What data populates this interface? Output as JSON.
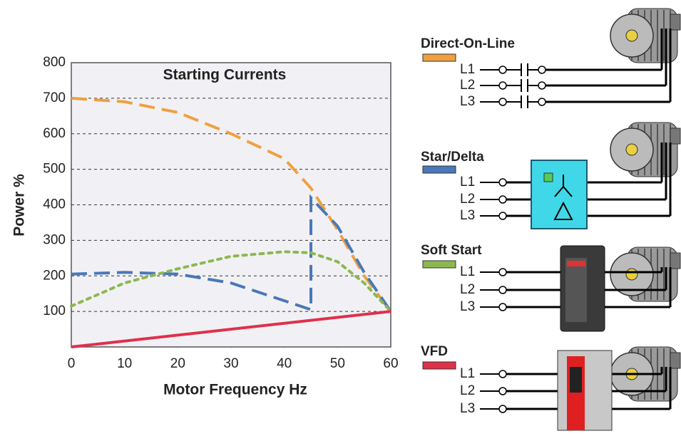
{
  "chart_data": {
    "type": "line",
    "title": "Starting Currents",
    "x_label": "Motor Frequency Hz",
    "y_label": "Power %",
    "xlim": [
      0,
      60
    ],
    "xticks": [
      0,
      10,
      20,
      30,
      40,
      50,
      60
    ],
    "ylim": [
      0,
      800
    ],
    "yticks": [
      100,
      200,
      300,
      400,
      500,
      600,
      700,
      800
    ],
    "grid": true,
    "series": [
      {
        "name": "Direct-On-Line",
        "color": "#f0a040",
        "style": "dashed",
        "x": [
          0,
          10,
          20,
          30,
          40,
          45,
          50,
          55,
          60
        ],
        "values": [
          700,
          690,
          660,
          600,
          530,
          447,
          330,
          200,
          100
        ]
      },
      {
        "name": "Star/Delta",
        "color": "#4a78b8",
        "style": "dashed",
        "x": [
          0,
          10,
          20,
          30,
          40,
          45,
          45,
          50,
          55,
          60
        ],
        "values": [
          205,
          210,
          205,
          180,
          130,
          105,
          420,
          340,
          210,
          100
        ]
      },
      {
        "name": "Soft Start",
        "color": "#8cb850",
        "style": "dotted",
        "x": [
          0,
          10,
          20,
          30,
          40,
          45,
          50,
          55,
          60
        ],
        "values": [
          115,
          180,
          220,
          255,
          268,
          265,
          240,
          180,
          100
        ]
      },
      {
        "name": "VFD",
        "color": "#e0304a",
        "style": "solid",
        "x": [
          0,
          60
        ],
        "values": [
          0,
          100
        ]
      }
    ]
  },
  "diagram": {
    "phases": [
      "L1",
      "L2",
      "L3"
    ]
  }
}
